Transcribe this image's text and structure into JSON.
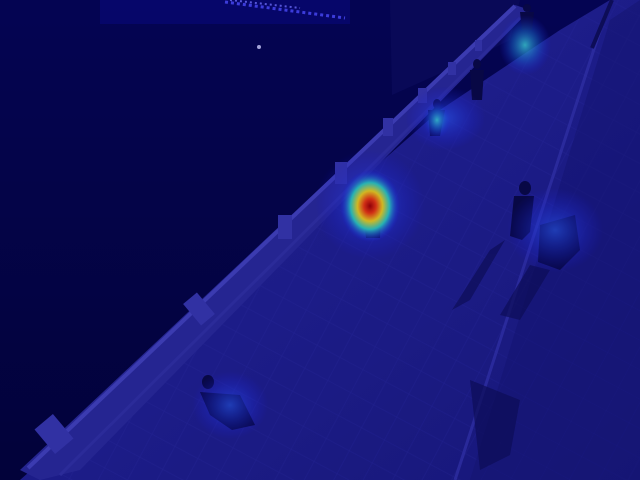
{
  "image": {
    "kind": "heatmap-overlay-photo",
    "scene": "night-bridge-walkway",
    "colors": {
      "water": "#05054a",
      "walkway": "#23239a",
      "railing": "#3a3ab8",
      "heat_peak": "#d01010",
      "heat_mid": "#ffd020",
      "heat_low": "#30c8e8"
    }
  }
}
